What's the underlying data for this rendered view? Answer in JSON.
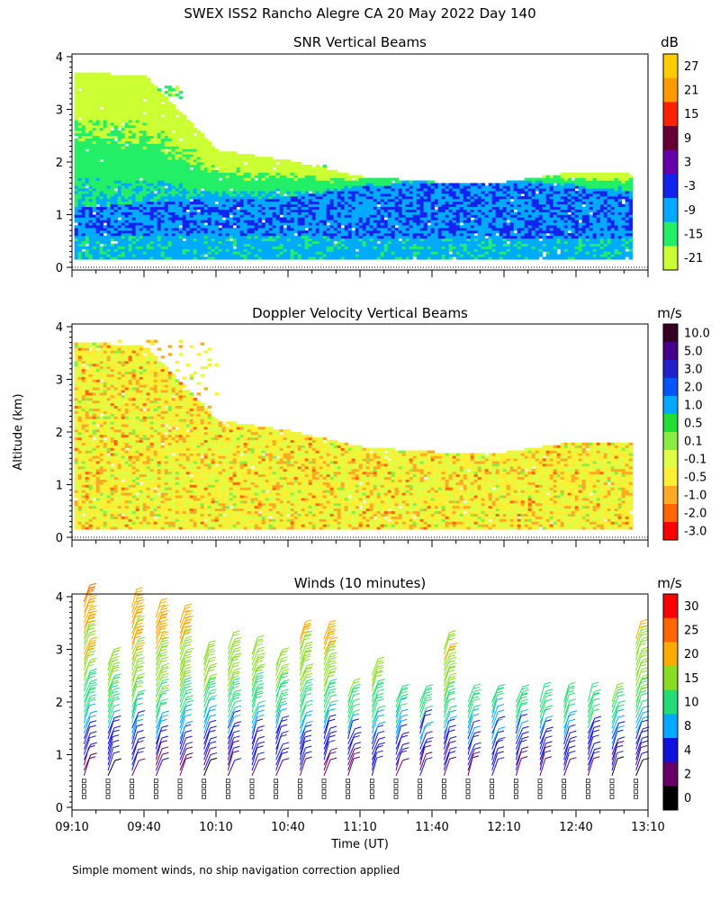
{
  "figure": {
    "title": "SWEX ISS2 Rancho Alegre CA  20 May 2022 Day 140",
    "ylabel": "Altitude (km)",
    "xlabel": "Time (UT)",
    "footnote": "Simple moment winds, no ship navigation correction applied",
    "x_ticks": [
      "09:10",
      "09:40",
      "10:10",
      "10:40",
      "11:10",
      "11:40",
      "12:10",
      "12:40",
      "13:10"
    ],
    "y_ticks": [
      "0",
      "1",
      "2",
      "3",
      "4"
    ]
  },
  "chart_data": [
    {
      "type": "heatmap",
      "title": "SNR Vertical Beams",
      "xlabel": "Time (UT)",
      "ylabel": "Altitude (km)",
      "xlim": [
        "09:10",
        "13:10"
      ],
      "ylim": [
        0,
        4
      ],
      "colorbar": {
        "unit": "dB",
        "labels": [
          "27",
          "21",
          "15",
          "9",
          "3",
          "-3",
          "-9",
          "-15",
          "-21"
        ],
        "colors": [
          "#FFCC00",
          "#FF9900",
          "#FF2200",
          "#660033",
          "#6600AA",
          "#1122EE",
          "#00AAFF",
          "#22EE66",
          "#CCFF33"
        ]
      },
      "profiles": [
        {
          "time": "09:10",
          "top_km": 3.7,
          "core_km": [
            0.6,
            1.1
          ],
          "layers_km": [
            2.0,
            2.4,
            3.3
          ]
        },
        {
          "time": "09:40",
          "top_km": 3.6,
          "core_km": [
            0.6,
            1.2
          ],
          "layers_km": [
            2.1,
            2.6,
            3.3
          ]
        },
        {
          "time": "10:10",
          "top_km": 2.2,
          "core_km": [
            0.6,
            1.3
          ],
          "layers_km": [
            1.9
          ]
        },
        {
          "time": "10:40",
          "top_km": 2.0,
          "core_km": [
            0.6,
            1.3
          ],
          "layers_km": [
            1.8
          ]
        },
        {
          "time": "11:10",
          "top_km": 1.7,
          "core_km": [
            0.5,
            1.5
          ],
          "layers_km": []
        },
        {
          "time": "11:40",
          "top_km": 1.6,
          "core_km": [
            0.5,
            1.6
          ],
          "layers_km": []
        },
        {
          "time": "12:10",
          "top_km": 1.6,
          "core_km": [
            0.5,
            1.6
          ],
          "layers_km": []
        },
        {
          "time": "12:40",
          "top_km": 1.8,
          "core_km": [
            0.5,
            1.5
          ],
          "layers_km": []
        },
        {
          "time": "13:05",
          "top_km": 1.8,
          "core_km": [
            0.5,
            1.4
          ],
          "layers_km": []
        }
      ]
    },
    {
      "type": "heatmap",
      "title": "Doppler Velocity Vertical Beams",
      "xlabel": "Time (UT)",
      "ylabel": "Altitude (km)",
      "xlim": [
        "09:10",
        "13:10"
      ],
      "ylim": [
        0,
        4
      ],
      "colorbar": {
        "unit": "m/s",
        "labels": [
          "10.0",
          "5.0",
          "3.0",
          "2.0",
          "1.0",
          "0.5",
          "0.1",
          "-0.1",
          "-0.5",
          "-1.0",
          "-2.0",
          "-3.0"
        ],
        "colors": [
          "#330022",
          "#440088",
          "#2222CC",
          "#0055FF",
          "#00AAFF",
          "#22DD33",
          "#88EE44",
          "#DDFF44",
          "#FFEE33",
          "#FFAA22",
          "#FF6600",
          "#FF0000"
        ]
      },
      "profiles": [
        {
          "time": "09:10",
          "top_km": 3.7,
          "mean_w": -0.3
        },
        {
          "time": "09:40",
          "top_km": 3.6,
          "mean_w": -0.3
        },
        {
          "time": "10:10",
          "top_km": 2.2,
          "mean_w": -0.4
        },
        {
          "time": "10:40",
          "top_km": 2.0,
          "mean_w": -0.4
        },
        {
          "time": "11:10",
          "top_km": 1.7,
          "mean_w": -0.3
        },
        {
          "time": "11:40",
          "top_km": 1.6,
          "mean_w": -0.3
        },
        {
          "time": "12:10",
          "top_km": 1.6,
          "mean_w": -0.3
        },
        {
          "time": "12:40",
          "top_km": 1.8,
          "mean_w": -0.4
        },
        {
          "time": "13:05",
          "top_km": 1.8,
          "mean_w": -0.4
        }
      ]
    },
    {
      "type": "wind-barbs",
      "title": "Winds (10 minutes)",
      "xlabel": "Time (UT)",
      "ylabel": "Altitude (km)",
      "xlim": [
        "09:10",
        "13:10"
      ],
      "ylim": [
        0,
        4
      ],
      "colorbar": {
        "unit": "m/s",
        "labels": [
          "30",
          "25",
          "20",
          "15",
          "10",
          "8",
          "4",
          "2",
          "0"
        ],
        "colors": [
          "#FF0000",
          "#FF6600",
          "#FFAA00",
          "#88DD22",
          "#22DD77",
          "#00AAFF",
          "#1111DD",
          "#660066",
          "#000000"
        ]
      },
      "times": [
        "09:15",
        "09:25",
        "09:35",
        "09:45",
        "09:55",
        "10:05",
        "10:15",
        "10:25",
        "10:35",
        "10:45",
        "10:55",
        "11:05",
        "11:15",
        "11:25",
        "11:35",
        "11:45",
        "11:55",
        "12:05",
        "12:15",
        "12:25",
        "12:35",
        "12:45",
        "12:55",
        "13:05"
      ],
      "profile_top_km": [
        4.0,
        2.8,
        3.9,
        3.7,
        3.6,
        2.9,
        3.1,
        3.0,
        2.8,
        3.3,
        3.3,
        2.2,
        2.6,
        2.1,
        2.1,
        3.1,
        2.1,
        2.1,
        2.1,
        2.1,
        2.1,
        2.1,
        2.1,
        3.3
      ],
      "representative_profile": [
        {
          "alt_km": 0.5,
          "speed_ms": 2
        },
        {
          "alt_km": 1.0,
          "speed_ms": 6
        },
        {
          "alt_km": 1.5,
          "speed_ms": 9
        },
        {
          "alt_km": 2.0,
          "speed_ms": 14
        },
        {
          "alt_km": 2.5,
          "speed_ms": 17
        },
        {
          "alt_km": 3.0,
          "speed_ms": 20
        },
        {
          "alt_km": 3.5,
          "speed_ms": 22
        },
        {
          "alt_km": 4.0,
          "speed_ms": 25
        }
      ]
    }
  ]
}
